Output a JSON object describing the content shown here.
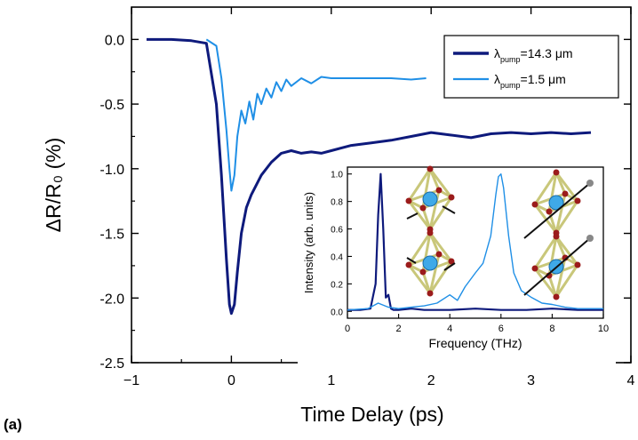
{
  "panel_label": "(a)",
  "colors": {
    "dark_blue": "#0e1a7c",
    "light_blue": "#1f8fe6",
    "atom_blue": "#3fa9e8",
    "atom_red": "#9b1b1b",
    "octa": "#c9c77a"
  },
  "chart_data": [
    {
      "type": "line",
      "xlabel": "Time Delay (ps)",
      "ylabel": "ΔR/R₀ (%)",
      "xlim": [
        -1,
        4
      ],
      "ylim": [
        -2.5,
        0.25
      ],
      "xticks": [
        -1,
        0,
        1,
        2,
        3,
        4
      ],
      "yticks": [
        0.0,
        -0.5,
        -1.0,
        -1.5,
        -2.0,
        -2.5
      ],
      "ytick_labels": [
        "0.0",
        "-0.5",
        "-1.0",
        "-1.5",
        "-2.0",
        "-2.5"
      ],
      "legend_position": "top-right",
      "series": [
        {
          "name": "λ",
          "name_sub": "pump",
          "name_suffix": "=14.3 μm",
          "color": "#0e1a7c",
          "x": [
            -0.85,
            -0.6,
            -0.4,
            -0.25,
            -0.15,
            -0.1,
            -0.05,
            -0.02,
            0.0,
            0.03,
            0.06,
            0.1,
            0.15,
            0.2,
            0.3,
            0.4,
            0.5,
            0.6,
            0.7,
            0.8,
            0.9,
            1.0,
            1.2,
            1.4,
            1.6,
            1.8,
            2.0,
            2.2,
            2.4,
            2.6,
            2.8,
            3.0,
            3.2,
            3.4,
            3.6
          ],
          "y": [
            0.0,
            0.0,
            -0.01,
            -0.03,
            -0.5,
            -1.05,
            -1.7,
            -2.05,
            -2.12,
            -2.05,
            -1.8,
            -1.5,
            -1.3,
            -1.2,
            -1.05,
            -0.95,
            -0.88,
            -0.86,
            -0.88,
            -0.87,
            -0.88,
            -0.86,
            -0.82,
            -0.8,
            -0.78,
            -0.75,
            -0.72,
            -0.74,
            -0.76,
            -0.73,
            -0.72,
            -0.73,
            -0.72,
            -0.73,
            -0.72
          ]
        },
        {
          "name": "λ",
          "name_sub": "pump",
          "name_suffix": "=1.5 μm",
          "color": "#1f8fe6",
          "x": [
            -0.25,
            -0.15,
            -0.1,
            -0.05,
            -0.02,
            0.0,
            0.03,
            0.06,
            0.1,
            0.14,
            0.18,
            0.22,
            0.26,
            0.3,
            0.35,
            0.4,
            0.45,
            0.5,
            0.55,
            0.6,
            0.7,
            0.8,
            0.9,
            1.0,
            1.2,
            1.4,
            1.6,
            1.8,
            1.95
          ],
          "y": [
            0.0,
            -0.05,
            -0.3,
            -0.7,
            -1.0,
            -1.17,
            -1.05,
            -0.75,
            -0.55,
            -0.65,
            -0.48,
            -0.62,
            -0.42,
            -0.5,
            -0.38,
            -0.45,
            -0.33,
            -0.4,
            -0.31,
            -0.36,
            -0.3,
            -0.34,
            -0.29,
            -0.3,
            -0.3,
            -0.3,
            -0.3,
            -0.31,
            -0.3
          ]
        }
      ]
    },
    {
      "type": "line",
      "xlabel": "Frequency (THz)",
      "ylabel": "Intensity (arb. units)",
      "xlim": [
        0,
        10
      ],
      "ylim": [
        -0.05,
        1.05
      ],
      "xticks": [
        0,
        2,
        4,
        6,
        8,
        10
      ],
      "yticks": [
        0.0,
        0.2,
        0.4,
        0.6,
        0.8,
        1.0
      ],
      "ytick_labels": [
        "0.0",
        "0.2",
        "0.4",
        "0.6",
        "0.8",
        "1.0"
      ],
      "series": [
        {
          "color": "#0e1a7c",
          "x": [
            0,
            0.5,
            0.9,
            1.1,
            1.2,
            1.3,
            1.4,
            1.5,
            1.6,
            1.7,
            1.8,
            2.0,
            2.5,
            3,
            4,
            5,
            6,
            7,
            8,
            9,
            10
          ],
          "y": [
            0.01,
            0.01,
            0.02,
            0.2,
            0.7,
            1.0,
            0.6,
            0.1,
            0.12,
            0.02,
            0.01,
            0.01,
            0.02,
            0.01,
            0.01,
            0.02,
            0.01,
            0.01,
            0.02,
            0.01,
            0.01
          ]
        },
        {
          "color": "#1f8fe6",
          "x": [
            0,
            0.8,
            1.2,
            1.6,
            2.0,
            2.5,
            3.0,
            3.5,
            4.0,
            4.3,
            4.6,
            5.0,
            5.3,
            5.6,
            5.8,
            5.9,
            6.0,
            6.1,
            6.3,
            6.5,
            6.8,
            7.2,
            7.6,
            8.0,
            8.5,
            9.0,
            10.0
          ],
          "y": [
            0.01,
            0.02,
            0.06,
            0.03,
            0.02,
            0.03,
            0.04,
            0.06,
            0.12,
            0.08,
            0.18,
            0.28,
            0.35,
            0.55,
            0.85,
            0.98,
            1.0,
            0.9,
            0.55,
            0.28,
            0.15,
            0.1,
            0.06,
            0.05,
            0.03,
            0.02,
            0.02
          ]
        }
      ]
    }
  ]
}
